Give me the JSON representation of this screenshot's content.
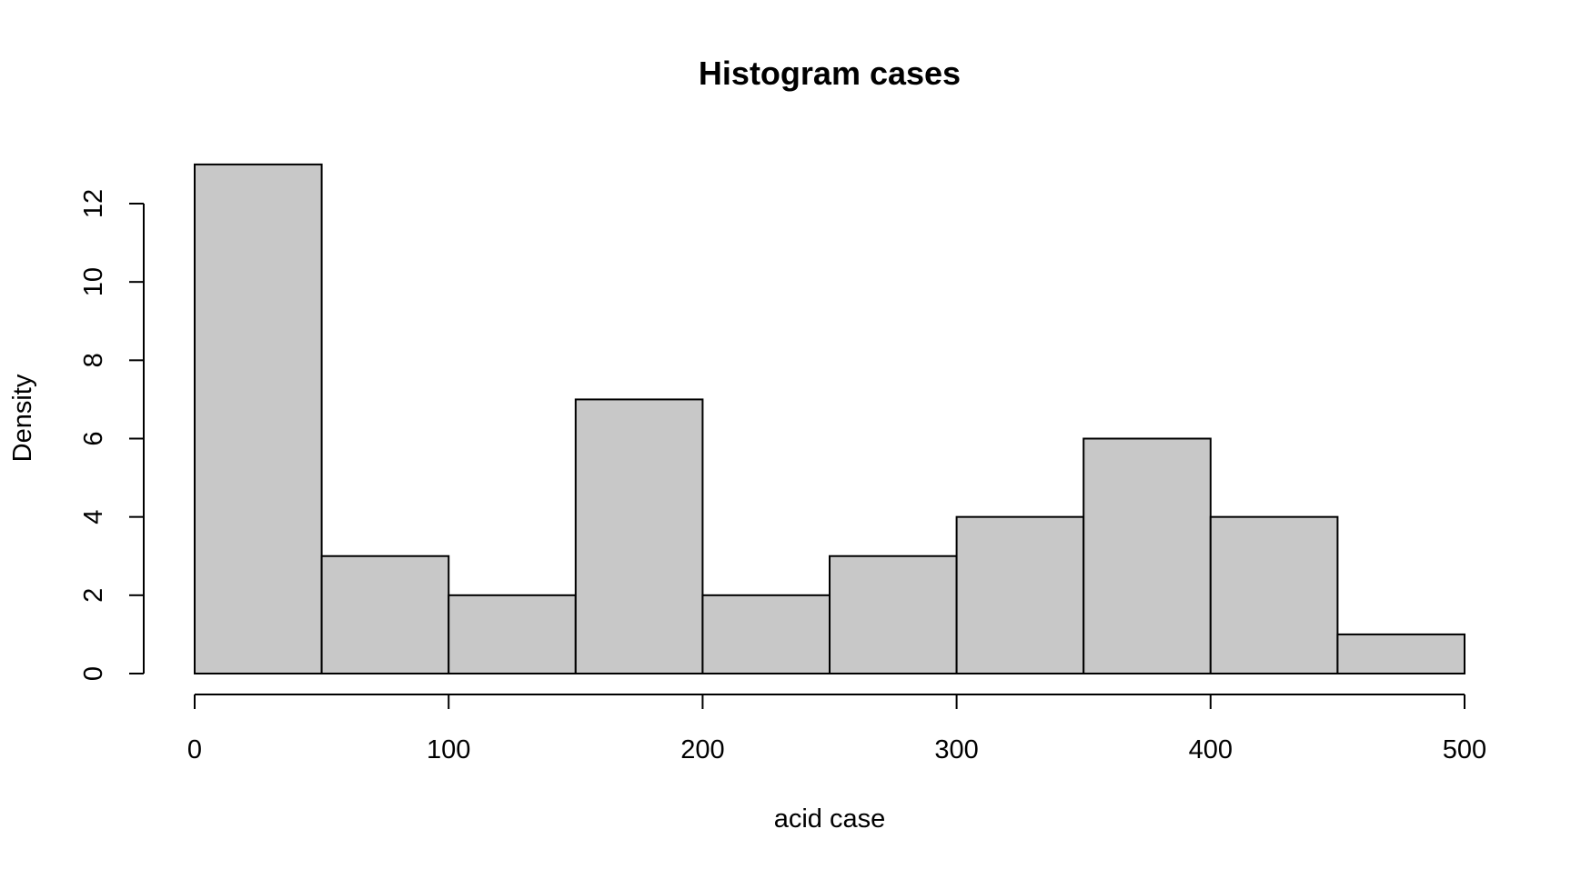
{
  "chart_data": {
    "type": "bar",
    "title": "Histogram cases",
    "xlabel": "acid case",
    "ylabel": "Density",
    "bins": [
      {
        "start": 0,
        "end": 50,
        "value": 13
      },
      {
        "start": 50,
        "end": 100,
        "value": 3
      },
      {
        "start": 100,
        "end": 150,
        "value": 2
      },
      {
        "start": 150,
        "end": 200,
        "value": 7
      },
      {
        "start": 200,
        "end": 250,
        "value": 2
      },
      {
        "start": 250,
        "end": 300,
        "value": 3
      },
      {
        "start": 300,
        "end": 350,
        "value": 4
      },
      {
        "start": 350,
        "end": 400,
        "value": 6
      },
      {
        "start": 400,
        "end": 450,
        "value": 4
      },
      {
        "start": 450,
        "end": 500,
        "value": 1
      }
    ],
    "xlim": [
      0,
      500
    ],
    "ylim": [
      0,
      12
    ],
    "x_ticks": [
      0,
      100,
      200,
      300,
      400,
      500
    ],
    "y_ticks": [
      0,
      2,
      4,
      6,
      8,
      10,
      12
    ],
    "grid": false,
    "bar_color": "#c8c8c8",
    "edge_color": "#000000"
  }
}
